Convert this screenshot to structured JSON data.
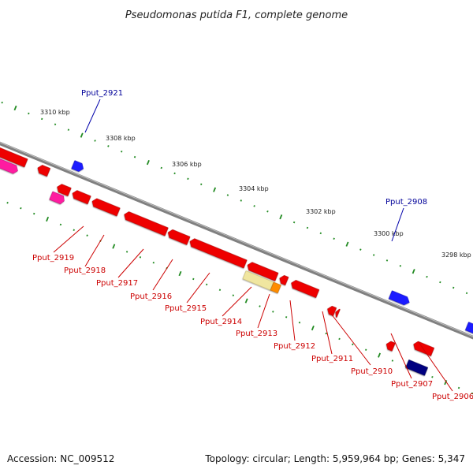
{
  "title": "Pseudomonas putida F1, complete genome",
  "footer": {
    "accession": "Accession: NC_009512",
    "summary": "Topology: circular; Length: 5,959,964 bp; Genes: 5,347"
  },
  "colors": {
    "red": "#ee0000",
    "blue": "#0000ee",
    "navy": "#000080",
    "pink": "#ff1aa0",
    "pale_yellow": "#f0e6a0",
    "orange": "#ff8c00",
    "backbone": "#808080",
    "tick_green": "#228b22",
    "red_label": "#cc0000",
    "blue_label": "#000099"
  },
  "scale_labels": [
    "3310 kbp",
    "3308 kbp",
    "3306 kbp",
    "3304 kbp",
    "3302 kbp",
    "3300 kbp",
    "3298 kbp"
  ],
  "gene_labels": [
    {
      "text": "Pput_2921",
      "color": "blue"
    },
    {
      "text": "Pput_2908",
      "color": "blue"
    },
    {
      "text": "Pput_2919",
      "color": "red"
    },
    {
      "text": "Pput_2918",
      "color": "red"
    },
    {
      "text": "Pput_2917",
      "color": "red"
    },
    {
      "text": "Pput_2916",
      "color": "red"
    },
    {
      "text": "Pput_2915",
      "color": "red"
    },
    {
      "text": "Pput_2914",
      "color": "red"
    },
    {
      "text": "Pput_2913",
      "color": "red"
    },
    {
      "text": "Pput_2912",
      "color": "red"
    },
    {
      "text": "Pput_2911",
      "color": "red"
    },
    {
      "text": "Pput_2910",
      "color": "red"
    },
    {
      "text": "Pput_2907",
      "color": "red"
    },
    {
      "text": "Pput_2906",
      "color": "red"
    }
  ]
}
